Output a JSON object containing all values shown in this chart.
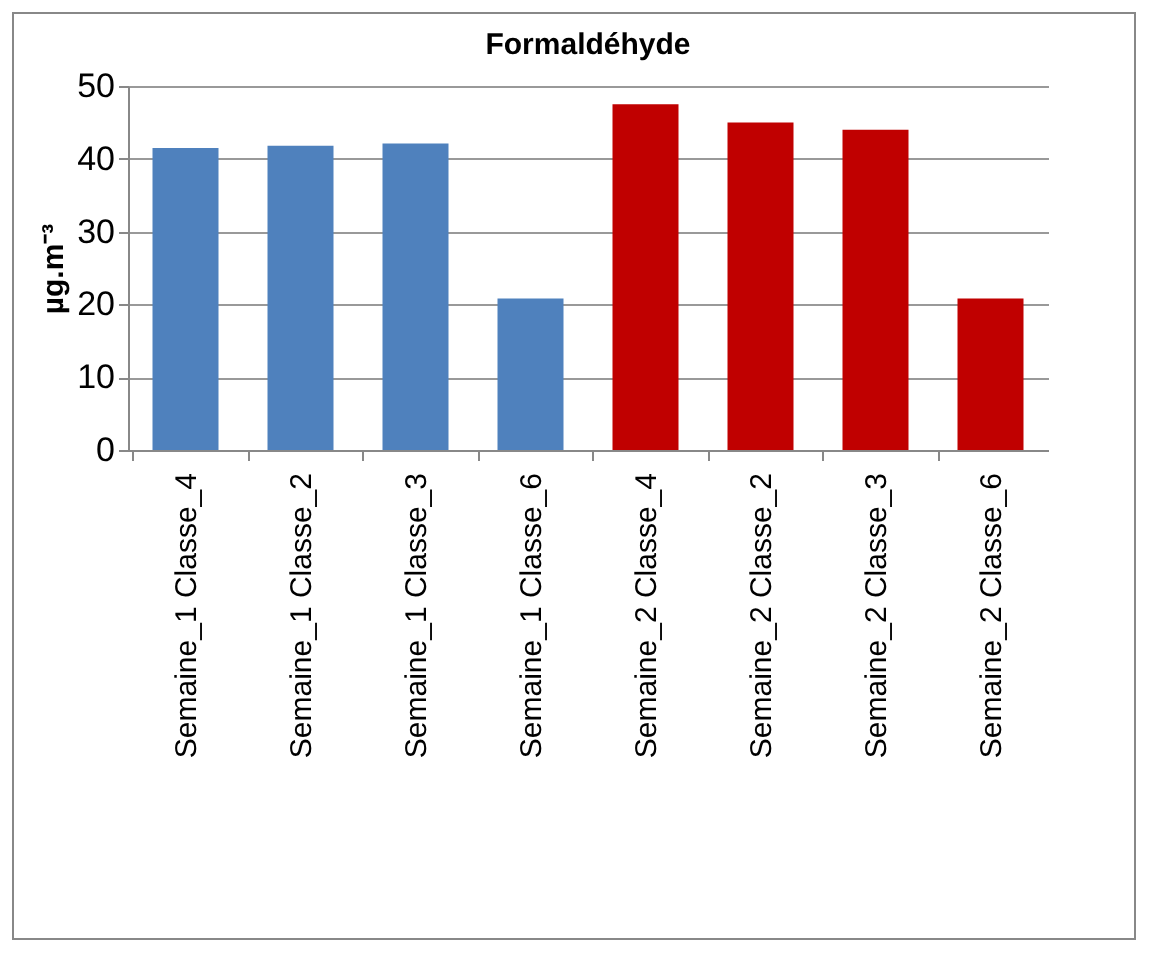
{
  "chart_data": {
    "type": "bar",
    "title": "Formaldéhyde",
    "ylabel": "µg.m⁻³",
    "categories": [
      "Semaine_1 Classe_4",
      "Semaine_1 Classe_2",
      "Semaine_1 Classe_3",
      "Semaine_1 Classe_6",
      "Semaine_2 Classe_4",
      "Semaine_2 Classe_2",
      "Semaine_2 Classe_3",
      "Semaine_2 Classe_6"
    ],
    "values": [
      41.5,
      41.8,
      42.1,
      20.8,
      47.5,
      45.0,
      44.0,
      20.8
    ],
    "colors": [
      "#4f81bd",
      "#4f81bd",
      "#4f81bd",
      "#4f81bd",
      "#c00000",
      "#c00000",
      "#c00000",
      "#c00000"
    ],
    "ylim": [
      0,
      50
    ],
    "yticks": [
      0,
      10,
      20,
      30,
      40,
      50
    ],
    "grid": "y"
  }
}
